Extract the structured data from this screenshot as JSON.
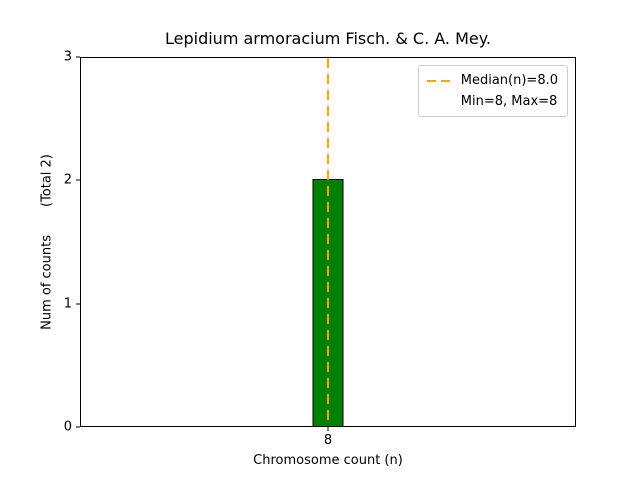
{
  "chart_data": {
    "type": "bar",
    "title": "Lepidium armoracium Fisch. & C. A. Mey.",
    "xlabel": "Chromosome count (n)",
    "ylabel": "Num of counts",
    "ylabel_annotation": "(Total 2)",
    "categories": [
      "8"
    ],
    "values": [
      2
    ],
    "ylim": [
      0,
      3
    ],
    "yticks": [
      0,
      1,
      2,
      3
    ],
    "bar_color": "#008000",
    "bar_edge_color": "#000000",
    "median_line": {
      "x": 8,
      "color": "#FFA500",
      "style": "dashed"
    },
    "legend": [
      {
        "label": "Median(n)=8.0",
        "swatch": "dashed-line",
        "color": "#FFA500"
      },
      {
        "label": "Min=8, Max=8",
        "swatch": "none"
      }
    ],
    "legend_position": "upper right",
    "grid": false,
    "background": "#ffffff"
  }
}
